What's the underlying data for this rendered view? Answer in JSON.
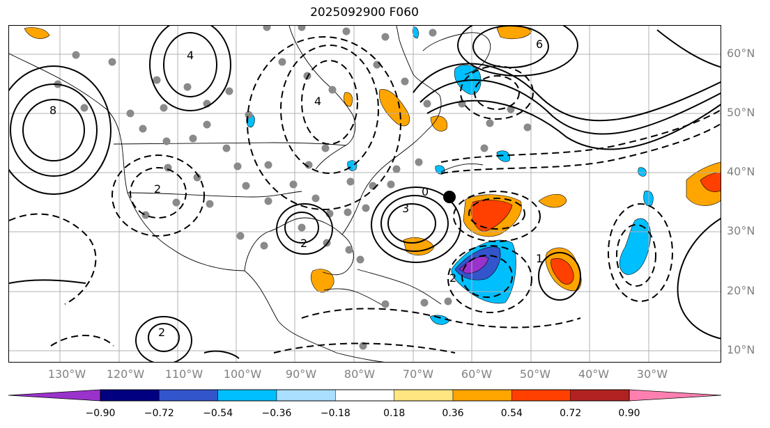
{
  "title": "2025092900 F060",
  "lat_labels": [
    "60°N",
    "50°N",
    "40°N",
    "30°N",
    "20°N",
    "10°N"
  ],
  "lon_labels": [
    "130°W",
    "120°W",
    "110°W",
    "100°W",
    "90°W",
    "80°W",
    "70°W",
    "60°W",
    "50°W",
    "40°W",
    "30°W"
  ],
  "colorbar": {
    "ticks": [
      "−0.90",
      "−0.72",
      "−0.54",
      "−0.36",
      "−0.18",
      "0.18",
      "0.36",
      "0.54",
      "0.72",
      "0.90"
    ],
    "colors": [
      "#9933cc",
      "#000080",
      "#3355cc",
      "#00bfff",
      "#aadfff",
      "#ffffff",
      "#ffe680",
      "#ffa500",
      "#ff4000",
      "#b22222",
      "#ff80b0"
    ]
  },
  "contour_labels": {
    "high_pacific": "8",
    "high_north": "4",
    "atl_high": "3",
    "gulf_high": "2",
    "ridge_east": "6",
    "trough_zero": "0",
    "pac_minus": "2",
    "mexico_high": "2",
    "neg_trop": "2",
    "canada_neg": "4",
    "south_atl": "1"
  },
  "storm_marker": "storm-center"
}
